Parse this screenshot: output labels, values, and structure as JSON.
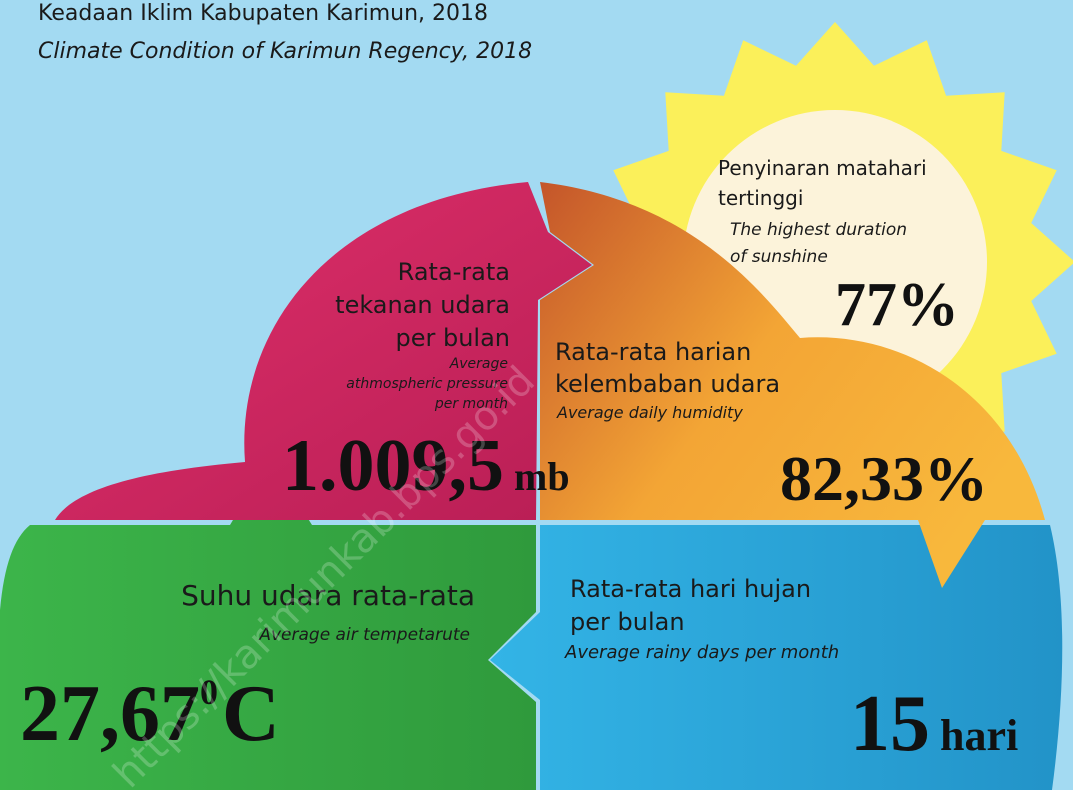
{
  "header": {
    "title": "Keadaan Iklim Kabupaten Karimun, 2018",
    "subtitle": "Climate Condition of Karimun Regency, 2018"
  },
  "sunshine": {
    "label": [
      "Penyinaran matahari",
      "tertinggi"
    ],
    "label_en": [
      "The highest duration",
      "of sunshine"
    ],
    "value": "77%"
  },
  "pressure": {
    "label": [
      "Rata-rata",
      "tekanan udara",
      "per bulan"
    ],
    "label_en": [
      "Average",
      "athmospheric pressure",
      "per month"
    ],
    "value": "1.009,5",
    "unit": "mb"
  },
  "humidity": {
    "label": [
      "Rata-rata harian",
      "kelembaban udara"
    ],
    "label_en": [
      "Average daily humidity"
    ],
    "value": "82,33%"
  },
  "temperature": {
    "label": [
      "Suhu udara rata-rata"
    ],
    "label_en": [
      "Average air tempetarute"
    ],
    "value": "27,67",
    "degree": "0",
    "unit": "C"
  },
  "rain": {
    "label": [
      "Rata-rata hari hujan",
      "per bulan"
    ],
    "label_en": [
      "Average rainy days per month"
    ],
    "value": "15",
    "unit": "hari"
  },
  "watermark": "https://karimunkab.bps.go.id"
}
